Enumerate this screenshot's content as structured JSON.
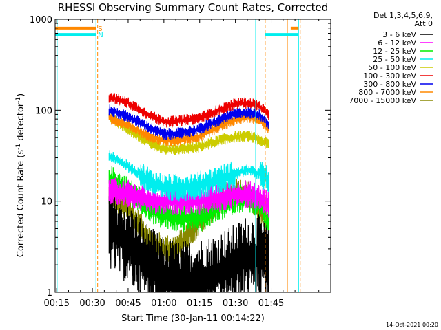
{
  "chart_data": {
    "type": "line",
    "title": "RHESSI Observing Summary Count Rates, Corrected",
    "xlabel": "Start Time (30-Jan-11 00:14:22)",
    "ylabel_main": "Corrected Count Rate (s",
    "ylabel_sup1": "-1",
    "ylabel_mid": " detector",
    "ylabel_sup2": "-1",
    "ylabel_end": ")",
    "yscale": "log",
    "ylim": [
      1,
      1000
    ],
    "xlim_min": [
      14.37,
      130
    ],
    "x_ticks": [
      {
        "label": "00:15",
        "v": 15
      },
      {
        "label": "00:30",
        "v": 30
      },
      {
        "label": "00:45",
        "v": 45
      },
      {
        "label": "01:00",
        "v": 60
      },
      {
        "label": "01:15",
        "v": 75
      },
      {
        "label": "01:30",
        "v": 90
      },
      {
        "label": "01:45",
        "v": 105
      }
    ],
    "y_ticks": [
      {
        "label": "1",
        "v": 1
      },
      {
        "label": "10",
        "v": 10
      },
      {
        "label": "100",
        "v": 100
      },
      {
        "label": "1000",
        "v": 1000
      }
    ],
    "legend": {
      "header1": "Det 1,3,4,5,6,9,",
      "header2": "Att 0",
      "placement": "outside-right",
      "entries": [
        {
          "label": "3 - 6 keV",
          "color": "#000000"
        },
        {
          "label": "6 - 12 keV",
          "color": "#ff00ff"
        },
        {
          "label": "12 - 25 keV",
          "color": "#00ee00"
        },
        {
          "label": "25 - 50 keV",
          "color": "#00eeee"
        },
        {
          "label": "50 - 100 keV",
          "color": "#cccc00"
        },
        {
          "label": "100 - 300 keV",
          "color": "#ee0000"
        },
        {
          "label": "300 - 800 keV",
          "color": "#0000ee"
        },
        {
          "label": "800 - 7000 keV",
          "color": "#ff8800"
        },
        {
          "label": "7000 - 15000 keV",
          "color": "#888800"
        }
      ]
    },
    "flags": [
      {
        "label": "S",
        "color": "#ff8800",
        "segments_min": [
          [
            14.37,
            31.5
          ],
          [
            113.2,
            116.5
          ]
        ],
        "y": 800
      },
      {
        "label": "N",
        "color": "#00eeee",
        "segments_min": [
          [
            14.37,
            31.5
          ],
          [
            102.5,
            116.5
          ]
        ],
        "y": 680
      }
    ],
    "markers_min": [
      {
        "min": 15.2,
        "color": "#00eeee",
        "style": "solid"
      },
      {
        "min": 31.5,
        "color": "#00eeee",
        "style": "solid"
      },
      {
        "min": 32.2,
        "color": "#ff8800",
        "style": "dashed"
      },
      {
        "min": 98.5,
        "color": "#00eeee",
        "style": "solid"
      },
      {
        "min": 102.5,
        "color": "#ff8800",
        "style": "dashed"
      },
      {
        "min": 111.8,
        "color": "#ff8800",
        "style": "solid"
      },
      {
        "min": 116.5,
        "color": "#00eeee",
        "style": "solid"
      },
      {
        "min": 117.2,
        "color": "#ff8800",
        "style": "dashed"
      }
    ],
    "data_span_min": [
      37,
      104
    ],
    "series": [
      {
        "name": "7000 - 15000 keV",
        "color": "#888800",
        "x": [
          37,
          45,
          55,
          60,
          65,
          75,
          85,
          90,
          95,
          100,
          104
        ],
        "y": [
          11,
          8,
          3.5,
          3,
          3,
          6,
          11,
          13,
          12,
          8,
          6
        ]
      },
      {
        "name": "3 - 6 keV",
        "color": "#000000",
        "x": [
          37,
          42,
          50,
          55,
          60,
          70,
          80,
          90,
          95,
          100,
          104
        ],
        "y": [
          5,
          4,
          2.5,
          1.8,
          1.4,
          1.3,
          1.5,
          2,
          2.5,
          2.5,
          2
        ]
      },
      {
        "name": "12 - 25 keV",
        "color": "#00ee00",
        "x": [
          37,
          45,
          55,
          60,
          65,
          75,
          85,
          90,
          95,
          100,
          104
        ],
        "y": [
          18,
          13,
          8,
          7,
          6.5,
          6.5,
          9,
          10.5,
          11,
          9,
          6
        ]
      },
      {
        "name": "6 - 12 keV",
        "color": "#ff00ff",
        "x": [
          37,
          45,
          55,
          60,
          65,
          75,
          85,
          90,
          95,
          100,
          104
        ],
        "y": [
          13,
          12,
          10,
          10,
          10,
          10,
          11,
          12,
          12,
          11,
          9
        ]
      },
      {
        "name": "25 - 50 keV",
        "color": "#00eeee",
        "x": [
          37,
          45,
          55,
          60,
          65,
          75,
          85,
          90,
          95,
          100,
          104
        ],
        "y": [
          32,
          24,
          16,
          14,
          14,
          15,
          18,
          20,
          22,
          20,
          17
        ]
      },
      {
        "name": "50 - 100 keV",
        "color": "#cccc00",
        "x": [
          37,
          45,
          55,
          60,
          65,
          75,
          85,
          90,
          95,
          100,
          104
        ],
        "y": [
          85,
          62,
          42,
          37,
          37,
          40,
          48,
          51,
          52,
          48,
          42
        ]
      },
      {
        "name": "800 - 7000 keV",
        "color": "#ff8800",
        "x": [
          37,
          45,
          55,
          60,
          65,
          75,
          85,
          90,
          95,
          100,
          104
        ],
        "y": [
          82,
          68,
          50,
          46,
          46,
          52,
          70,
          80,
          84,
          80,
          62
        ]
      },
      {
        "name": "300 - 800 keV",
        "color": "#0000ee",
        "x": [
          37,
          45,
          55,
          60,
          65,
          75,
          85,
          90,
          95,
          100,
          104
        ],
        "y": [
          100,
          85,
          62,
          55,
          55,
          62,
          82,
          92,
          95,
          90,
          70
        ]
      },
      {
        "name": "100 - 300 keV",
        "color": "#ee0000",
        "x": [
          37,
          45,
          55,
          60,
          65,
          75,
          85,
          90,
          95,
          100,
          104
        ],
        "y": [
          140,
          120,
          85,
          75,
          75,
          82,
          105,
          118,
          120,
          112,
          88
        ]
      }
    ]
  },
  "footer": {
    "date": "14-Oct-2021 00:20"
  }
}
